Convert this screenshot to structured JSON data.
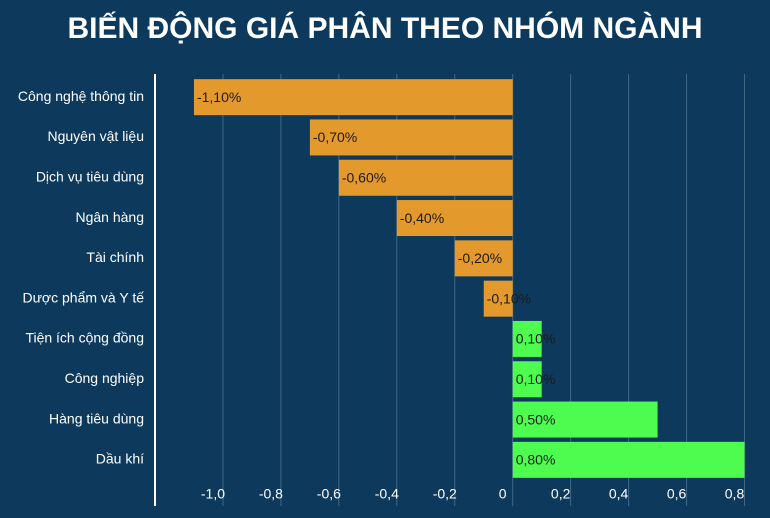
{
  "chart_data": {
    "type": "bar",
    "orientation": "horizontal",
    "title": "BIẾN ĐỘNG GIÁ PHÂN THEO NHÓM NGÀNH",
    "categories": [
      "Công nghệ thông tin",
      "Nguyên vật liệu",
      "Dịch vụ tiêu dùng",
      "Ngân hàng",
      "Tài chính",
      "Dược phẩm và Y tế",
      "Tiện ích cộng đồng",
      "Công nghiệp",
      "Hàng tiêu dùng",
      "Dầu khí"
    ],
    "values": [
      -1.1,
      -0.7,
      -0.6,
      -0.4,
      -0.2,
      -0.1,
      0.1,
      0.1,
      0.5,
      0.8
    ],
    "value_labels": [
      "-1,10%",
      "-0,70%",
      "-0,60%",
      "-0,40%",
      "-0,20%",
      "-0,10%",
      "0,10%",
      "0,10%",
      "0,50%",
      "0,80%"
    ],
    "negative_color": "#e3992b",
    "positive_color": "#4dfc4f",
    "xlim": [
      -1.2,
      0.85
    ],
    "xticks": [
      {
        "value": -1.0,
        "label": "-1,0"
      },
      {
        "value": -0.8,
        "label": "-0,8"
      },
      {
        "value": -0.6,
        "label": "-0,6"
      },
      {
        "value": -0.4,
        "label": "-0,4"
      },
      {
        "value": -0.2,
        "label": "-0,2"
      },
      0,
      {
        "value": 0.2,
        "label": "0,2"
      },
      {
        "value": 0.4,
        "label": "0,4"
      },
      {
        "value": 0.6,
        "label": "0,6"
      },
      {
        "value": 0.8,
        "label": "0,8"
      }
    ],
    "grid": true
  }
}
